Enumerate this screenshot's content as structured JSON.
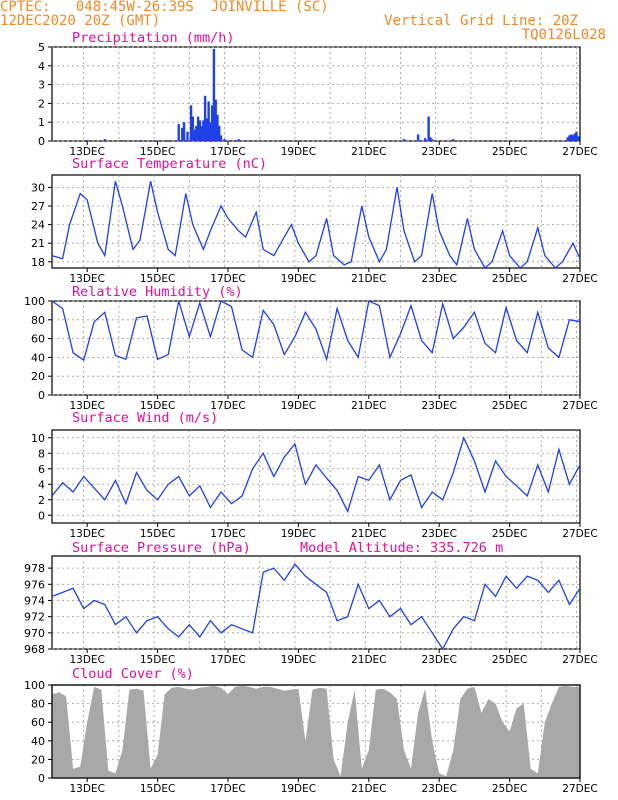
{
  "header": {
    "line1": "CPTEC:   048:45W-26:39S  JOINVILLE (SC)",
    "line2": "12DEC2020 20Z (GMT)",
    "grid_note": "Vertical Grid Line: 20Z",
    "code": "TQ0126L028"
  },
  "colors": {
    "header": "#f08a28",
    "title": "#e0109a",
    "series": "#2040e8",
    "cloud": "#a8a8a8",
    "grid": "#9a9a9a",
    "axis": "#000000"
  },
  "x_tick_labels": [
    "13DEC",
    "15DEC",
    "17DEC",
    "19DEC",
    "21DEC",
    "23DEC",
    "25DEC",
    "27DEC"
  ],
  "chart_data": [
    {
      "type": "bar",
      "title": "Precipitation (mm/h)",
      "ylim": [
        0,
        5
      ],
      "yticks": [
        0,
        1,
        2,
        3,
        4,
        5
      ],
      "grid": true,
      "x": [
        13.0,
        13.5,
        14.0,
        14.5,
        14.9,
        15.3,
        15.6,
        15.7,
        15.75,
        15.85,
        15.95,
        16.0,
        16.05,
        16.1,
        16.15,
        16.2,
        16.25,
        16.3,
        16.35,
        16.4,
        16.45,
        16.5,
        16.55,
        16.6,
        16.65,
        16.7,
        16.75,
        16.8,
        16.9,
        17.3,
        22.0,
        22.4,
        22.6,
        22.7,
        22.75,
        22.8,
        23.4,
        26.65,
        26.7,
        26.75,
        26.8,
        26.85,
        26.9,
        26.95
      ],
      "values": [
        0.05,
        0.1,
        0.05,
        0.05,
        0.05,
        0.05,
        0.9,
        0.7,
        1.0,
        0.5,
        1.9,
        1.3,
        0.6,
        0.8,
        1.3,
        1.1,
        0.8,
        1.1,
        2.4,
        1.2,
        2.1,
        1.0,
        1.9,
        4.9,
        2.2,
        1.4,
        0.8,
        0.3,
        0.1,
        0.1,
        0.1,
        0.35,
        0.15,
        1.3,
        0.2,
        0.1,
        0.1,
        0.2,
        0.3,
        0.35,
        0.3,
        0.4,
        0.5,
        0.25
      ]
    },
    {
      "type": "line",
      "title": "Surface Temperature (nC)",
      "ylim": [
        17,
        32
      ],
      "yticks": [
        18,
        21,
        24,
        27,
        30
      ],
      "grid": true,
      "x": [
        12.0,
        12.3,
        12.5,
        12.8,
        13.0,
        13.3,
        13.5,
        13.8,
        14.0,
        14.3,
        14.5,
        14.8,
        15.0,
        15.3,
        15.5,
        15.8,
        16.0,
        16.3,
        16.5,
        16.8,
        17.0,
        17.3,
        17.5,
        17.8,
        18.0,
        18.3,
        18.5,
        18.8,
        19.0,
        19.3,
        19.5,
        19.8,
        20.0,
        20.3,
        20.5,
        20.8,
        21.0,
        21.3,
        21.5,
        21.8,
        22.0,
        22.3,
        22.5,
        22.8,
        23.0,
        23.3,
        23.5,
        23.8,
        24.0,
        24.3,
        24.5,
        24.8,
        25.0,
        25.3,
        25.5,
        25.8,
        26.0,
        26.3,
        26.5,
        26.8,
        27.0
      ],
      "values": [
        19,
        18.5,
        24,
        29,
        28,
        21,
        19,
        31,
        27,
        20,
        21.5,
        31,
        26,
        20,
        19,
        29,
        24,
        20,
        23,
        27,
        25,
        23,
        22,
        26,
        20,
        19,
        21,
        24,
        21,
        18,
        19,
        25,
        19,
        17.5,
        18,
        27,
        22,
        18,
        20,
        30,
        23,
        18,
        19,
        29,
        23,
        19,
        17.5,
        25,
        20,
        17,
        18,
        23,
        19,
        17,
        18,
        23.5,
        19,
        17,
        18,
        21,
        18.5
      ]
    },
    {
      "type": "line",
      "title": "Relative Humidity (%)",
      "ylim": [
        0,
        100
      ],
      "yticks": [
        0,
        20,
        40,
        60,
        80,
        100
      ],
      "grid": true,
      "x": [
        12.0,
        12.3,
        12.6,
        12.9,
        13.2,
        13.5,
        13.8,
        14.1,
        14.4,
        14.7,
        15.0,
        15.3,
        15.6,
        15.9,
        16.2,
        16.5,
        16.8,
        17.1,
        17.4,
        17.7,
        18.0,
        18.3,
        18.6,
        18.9,
        19.2,
        19.5,
        19.8,
        20.1,
        20.4,
        20.7,
        21.0,
        21.3,
        21.6,
        21.9,
        22.2,
        22.5,
        22.8,
        23.1,
        23.4,
        23.7,
        24.0,
        24.3,
        24.6,
        24.9,
        25.2,
        25.5,
        25.8,
        26.1,
        26.4,
        26.7,
        27.0
      ],
      "values": [
        100,
        92,
        45,
        37,
        78,
        88,
        42,
        38,
        82,
        84,
        38,
        43,
        100,
        62,
        98,
        62,
        100,
        94,
        48,
        40,
        90,
        75,
        43,
        62,
        88,
        70,
        38,
        92,
        58,
        40,
        100,
        95,
        40,
        65,
        95,
        58,
        45,
        97,
        60,
        72,
        88,
        55,
        45,
        93,
        58,
        45,
        88,
        50,
        40,
        80,
        78
      ]
    },
    {
      "type": "line",
      "title": "Surface Wind (m/s)",
      "ylim": [
        -1,
        11
      ],
      "yticks": [
        0,
        2,
        4,
        6,
        8,
        10
      ],
      "grid": true,
      "x": [
        12.0,
        12.3,
        12.6,
        12.9,
        13.2,
        13.5,
        13.8,
        14.1,
        14.4,
        14.7,
        15.0,
        15.3,
        15.6,
        15.9,
        16.2,
        16.5,
        16.8,
        17.1,
        17.4,
        17.7,
        18.0,
        18.3,
        18.6,
        18.9,
        19.2,
        19.5,
        19.8,
        20.1,
        20.4,
        20.7,
        21.0,
        21.3,
        21.6,
        21.9,
        22.2,
        22.5,
        22.8,
        23.1,
        23.4,
        23.7,
        24.0,
        24.3,
        24.6,
        24.9,
        25.2,
        25.5,
        25.8,
        26.1,
        26.4,
        26.7,
        27.0
      ],
      "values": [
        2.5,
        4.2,
        3.0,
        5.0,
        3.5,
        2.0,
        4.5,
        1.5,
        5.5,
        3.2,
        2.0,
        4.0,
        5.0,
        2.5,
        3.8,
        1.0,
        3.0,
        1.5,
        2.5,
        6.0,
        8.0,
        5.0,
        7.5,
        9.2,
        4.0,
        6.5,
        4.8,
        3.2,
        0.5,
        5.0,
        4.5,
        6.5,
        2.0,
        4.5,
        5.2,
        1.0,
        3.0,
        2.0,
        5.5,
        10.0,
        7.0,
        3.0,
        7.0,
        5.0,
        3.8,
        2.5,
        6.5,
        3.0,
        8.5,
        4.0,
        6.5
      ]
    },
    {
      "type": "line",
      "title": "Surface Pressure (hPa)",
      "annotation": "Model Altitude: 335.726 m",
      "ylim": [
        968,
        979.5
      ],
      "yticks": [
        968,
        970,
        972,
        974,
        976,
        978
      ],
      "grid": true,
      "x": [
        12.0,
        12.3,
        12.6,
        12.9,
        13.2,
        13.5,
        13.8,
        14.1,
        14.4,
        14.7,
        15.0,
        15.3,
        15.6,
        15.9,
        16.2,
        16.5,
        16.8,
        17.1,
        17.4,
        17.7,
        18.0,
        18.3,
        18.6,
        18.9,
        19.2,
        19.5,
        19.8,
        20.1,
        20.4,
        20.7,
        21.0,
        21.3,
        21.6,
        21.9,
        22.2,
        22.5,
        22.8,
        23.1,
        23.4,
        23.7,
        24.0,
        24.3,
        24.6,
        24.9,
        25.2,
        25.5,
        25.8,
        26.1,
        26.4,
        26.7,
        27.0
      ],
      "values": [
        974.5,
        975.0,
        975.5,
        973.0,
        974.0,
        973.5,
        971.0,
        972.0,
        970.0,
        971.5,
        972.0,
        970.5,
        969.5,
        971.0,
        969.5,
        971.5,
        970.0,
        971.0,
        970.5,
        970.0,
        977.5,
        978.0,
        976.5,
        978.5,
        977.0,
        976.0,
        975.0,
        971.5,
        972.0,
        976.0,
        973.0,
        974.0,
        972.0,
        973.0,
        971.0,
        972.0,
        970.0,
        968.0,
        970.5,
        972.0,
        971.5,
        976.0,
        974.5,
        977.0,
        975.5,
        977.0,
        976.5,
        975.0,
        976.5,
        973.5,
        975.5
      ]
    },
    {
      "type": "area",
      "title": "Cloud Cover (%)",
      "ylim": [
        0,
        100
      ],
      "yticks": [
        0,
        20,
        40,
        60,
        80,
        100
      ],
      "grid": true,
      "x": [
        12.0,
        12.2,
        12.4,
        12.6,
        12.8,
        13.0,
        13.2,
        13.4,
        13.6,
        13.8,
        14.0,
        14.2,
        14.4,
        14.6,
        14.8,
        15.0,
        15.2,
        15.4,
        15.6,
        15.8,
        16.0,
        16.2,
        16.4,
        16.6,
        16.8,
        17.0,
        17.2,
        17.4,
        17.6,
        17.8,
        18.0,
        18.2,
        18.4,
        18.6,
        18.8,
        19.0,
        19.2,
        19.4,
        19.6,
        19.8,
        20.0,
        20.2,
        20.4,
        20.6,
        20.8,
        21.0,
        21.2,
        21.4,
        21.6,
        21.8,
        22.0,
        22.2,
        22.4,
        22.6,
        22.8,
        23.0,
        23.2,
        23.4,
        23.6,
        23.8,
        24.0,
        24.2,
        24.4,
        24.6,
        24.8,
        25.0,
        25.2,
        25.4,
        25.6,
        25.8,
        26.0,
        26.2,
        26.4,
        26.6,
        26.8,
        27.0
      ],
      "values": [
        90,
        92,
        88,
        10,
        12,
        60,
        98,
        95,
        8,
        5,
        30,
        95,
        96,
        94,
        10,
        25,
        90,
        97,
        98,
        96,
        95,
        97,
        98,
        99,
        97,
        90,
        98,
        99,
        98,
        96,
        98,
        98,
        96,
        94,
        95,
        96,
        40,
        95,
        97,
        96,
        20,
        2,
        60,
        95,
        10,
        30,
        95,
        96,
        92,
        85,
        30,
        10,
        70,
        96,
        40,
        5,
        2,
        30,
        85,
        96,
        98,
        70,
        85,
        80,
        60,
        50,
        75,
        80,
        10,
        5,
        60,
        80,
        98,
        99,
        98,
        98
      ]
    }
  ]
}
